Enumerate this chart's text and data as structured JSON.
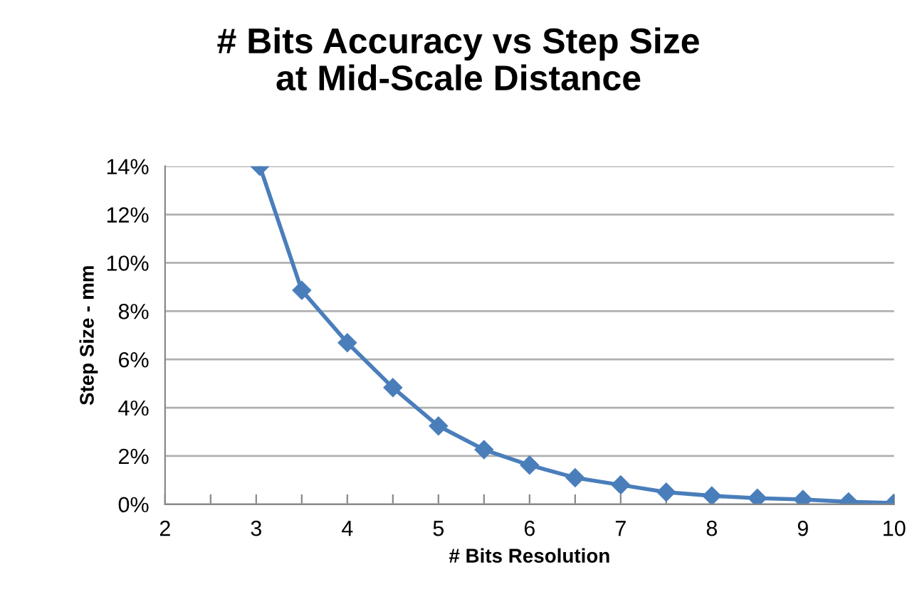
{
  "chart_data": {
    "type": "line",
    "title": "# Bits Accuracy vs Step Size\nat Mid-Scale Distance",
    "xlabel": "# Bits Resolution",
    "ylabel": "Step Size - mm",
    "series": [
      {
        "color": "#4a7ebb",
        "x": [
          3.04,
          3.5,
          4,
          4.5,
          5,
          5.5,
          6,
          6.5,
          7,
          7.5,
          8,
          8.5,
          9,
          9.5,
          10
        ],
        "values": [
          14,
          8.86,
          6.69,
          4.83,
          3.24,
          2.26,
          1.62,
          1.1,
          0.8,
          0.5,
          0.35,
          0.25,
          0.2,
          0.1,
          0.05
        ]
      }
    ],
    "xlim": [
      2,
      10
    ],
    "ylim": [
      0,
      14
    ],
    "xticks": [
      2,
      {
        "value": 2.5,
        "label": null
      },
      3,
      {
        "value": 3.5,
        "label": null
      },
      4,
      {
        "value": 4.5,
        "label": null
      },
      5,
      {
        "value": 5.5,
        "label": null
      },
      6,
      {
        "value": 6.5,
        "label": null
      },
      7,
      {
        "value": 7.5,
        "label": null
      },
      8,
      {
        "value": 8.5,
        "label": null
      },
      9,
      {
        "value": 9.5,
        "label": null
      },
      10
    ],
    "yticks": [
      {
        "value": 0,
        "label": "0%"
      },
      {
        "value": 2,
        "label": "2%"
      },
      {
        "value": 4,
        "label": "4%"
      },
      {
        "value": 6,
        "label": "6%"
      },
      {
        "value": 8,
        "label": "8%"
      },
      {
        "value": 10,
        "label": "10%"
      },
      {
        "value": 12,
        "label": "12%"
      },
      {
        "value": 14,
        "label": "14%"
      }
    ],
    "grid": "y",
    "marker": "diamond",
    "line_style": "solid"
  }
}
